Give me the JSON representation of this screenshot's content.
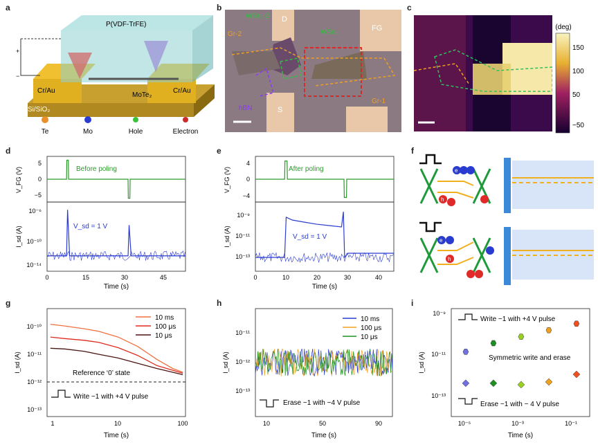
{
  "panel_letters": [
    "a",
    "b",
    "c",
    "d",
    "e",
    "f",
    "g",
    "h",
    "i"
  ],
  "a": {
    "polymer": "P(VDF-TrFE)",
    "electrode_left": "Cr/Au",
    "electrode_right": "Cr/Au",
    "channel": "MoTe₂",
    "substrate": "Si/SiO₂",
    "plus": "+",
    "minus": "−",
    "legend": [
      "Te",
      "Mo",
      "Hole",
      "Electron"
    ],
    "legend_colors": [
      "#e8902a",
      "#2a3bd0",
      "#3bc23b",
      "#cc2a2a"
    ]
  },
  "b": {
    "labels": [
      "WSe₂-2",
      "D",
      "WSe₂",
      "FG",
      "Gr-2",
      "hBN",
      "S",
      "Gr-1"
    ]
  },
  "c": {
    "colorbar_title": "(deg)",
    "colorbar_ticks": [
      "150",
      "100",
      "50",
      "−50"
    ]
  },
  "d": {
    "top_ylabel": "V_FG (V)",
    "top_note": "Before poling",
    "top_yticks": [
      "5",
      "0",
      "−5"
    ],
    "bot_ylabel": "I_sd (A)",
    "bot_note": "V_sd = 1 V",
    "bot_yticks": [
      "10⁻⁶",
      "10⁻¹⁰",
      "10⁻¹⁴"
    ],
    "xticks": [
      "0",
      "15",
      "30",
      "45"
    ],
    "xlabel": "Time (s)"
  },
  "e": {
    "top_ylabel": "V_FG (V)",
    "top_note": "After poling",
    "top_yticks": [
      "4",
      "0",
      "−4"
    ],
    "bot_ylabel": "I_sd (A)",
    "bot_note": "V_sd = 1 V",
    "bot_yticks": [
      "10⁻⁹",
      "10⁻¹¹",
      "10⁻¹³"
    ],
    "xticks": [
      "0",
      "10",
      "20",
      "30",
      "40"
    ],
    "xlabel": "Time (s)"
  },
  "f": {
    "charge_e": "e",
    "charge_h": "h"
  },
  "chart_data": [
    {
      "panel": "d-top",
      "type": "line",
      "xlabel": "Time (s)",
      "ylabel": "V_FG (V)",
      "xlim": [
        0,
        54
      ],
      "ylim": [
        -6,
        6
      ],
      "series": [
        {
          "name": "V_FG",
          "x": [
            0,
            7.6,
            7.7,
            8.3,
            8.4,
            31.6,
            31.7,
            32.3,
            32.4,
            54
          ],
          "y": [
            0,
            0,
            5,
            5,
            0,
            0,
            -5,
            -5,
            0,
            0
          ]
        }
      ],
      "annotations": [
        "Before poling"
      ]
    },
    {
      "panel": "d-bottom",
      "type": "line",
      "xlabel": "Time (s)",
      "ylabel": "I_sd (A)",
      "yscale": "log",
      "xlim": [
        0,
        54
      ],
      "ylim": [
        1e-14,
        1e-05
      ],
      "series": [
        {
          "name": "I_sd",
          "x": [
            0,
            7.6,
            8,
            8.8,
            31.6,
            32,
            32.8,
            54
          ],
          "y": [
            1e-12,
            1e-12,
            1e-06,
            1e-12,
            1e-12,
            1e-08,
            1e-12,
            1e-12
          ]
        }
      ],
      "annotations": [
        "V_sd = 1 V"
      ]
    },
    {
      "panel": "e-top",
      "type": "line",
      "xlabel": "Time (s)",
      "ylabel": "V_FG (V)",
      "xlim": [
        0,
        45
      ],
      "ylim": [
        -5,
        5
      ],
      "series": [
        {
          "name": "V_FG",
          "x": [
            0,
            9.5,
            9.6,
            10.3,
            10.4,
            28.8,
            28.9,
            29.6,
            29.7,
            45
          ],
          "y": [
            0,
            0,
            4,
            4,
            0,
            0,
            -4,
            -4,
            0,
            0
          ]
        }
      ],
      "annotations": [
        "After poling"
      ]
    },
    {
      "panel": "e-bottom",
      "type": "line",
      "xlabel": "Time (s)",
      "ylabel": "I_sd (A)",
      "yscale": "log",
      "xlim": [
        0,
        45
      ],
      "ylim": [
        1e-13,
        1e-08
      ],
      "series": [
        {
          "name": "I_sd",
          "x": [
            0,
            9.5,
            10,
            12,
            16,
            20,
            24,
            28,
            28.6,
            29,
            30,
            45
          ],
          "y": [
            1e-12,
            1e-12,
            8e-10,
            5e-10,
            3.5e-10,
            2.5e-10,
            2e-10,
            1.6e-10,
            2e-09,
            1e-12,
            2e-12,
            2e-12
          ]
        }
      ],
      "annotations": [
        "V_sd = 1 V"
      ]
    },
    {
      "panel": "g",
      "type": "line",
      "xlabel": "Time (s)",
      "ylabel": "I_sd (A)",
      "xscale": "log",
      "yscale": "log",
      "xlim": [
        0.8,
        110
      ],
      "ylim": [
        1e-13,
        4e-10
      ],
      "series": [
        {
          "name": "10 ms",
          "color": "#f07040",
          "x": [
            0.9,
            1.5,
            3,
            5,
            10,
            20,
            40,
            70,
            100
          ],
          "y": [
            1.2e-10,
            1.05e-10,
            8.5e-11,
            7e-11,
            4.5e-11,
            2.2e-11,
            8e-12,
            4e-12,
            3e-12
          ]
        },
        {
          "name": "100 μs",
          "color": "#e02a1e",
          "x": [
            0.9,
            1.5,
            3,
            5,
            10,
            20,
            40,
            70,
            100
          ],
          "y": [
            4.5e-11,
            4e-11,
            3.5e-11,
            3e-11,
            2e-11,
            1.1e-11,
            5e-12,
            3.5e-12,
            2.8e-12
          ]
        },
        {
          "name": "10 μs",
          "color": "#4a1410",
          "x": [
            0.9,
            1.5,
            3,
            5,
            10,
            20,
            40,
            70,
            100
          ],
          "y": [
            1.9e-11,
            1.8e-11,
            1.5e-11,
            1.2e-11,
            9e-12,
            6e-12,
            4e-12,
            3e-12,
            2.5e-12
          ]
        }
      ],
      "reference": {
        "y": 1e-12,
        "label": "Reference ‘0’ state"
      },
      "annotations": [
        "Write −1 with +4 V  pulse"
      ]
    },
    {
      "panel": "h",
      "type": "line",
      "xlabel": "Time (s)",
      "ylabel": "I_sd (A)",
      "yscale": "log",
      "xlim": [
        2,
        100
      ],
      "ylim": [
        1e-14,
        1e-10
      ],
      "series": [
        {
          "name": "10 ms",
          "color": "#2a3bd0",
          "x": [
            2,
            100
          ],
          "y": [
            1e-12,
            1e-12
          ]
        },
        {
          "name": "100 μs",
          "color": "#f0a020",
          "x": [
            2,
            100
          ],
          "y": [
            1e-12,
            1e-12
          ]
        },
        {
          "name": "10 μs",
          "color": "#1e9020",
          "x": [
            2,
            100
          ],
          "y": [
            1e-12,
            1e-12
          ]
        }
      ],
      "annotations": [
        "Erase −1 with −4 V  pulse"
      ]
    },
    {
      "panel": "i",
      "type": "scatter",
      "xlabel": "Time (s)",
      "ylabel": "I_sd (A)",
      "xscale": "log",
      "yscale": "log",
      "xlim": [
        3e-06,
        0.3
      ],
      "ylim": [
        2e-14,
        2e-09
      ],
      "series": [
        {
          "name": "Write",
          "x": [
            1e-05,
            0.0001,
            0.001,
            0.01,
            0.1
          ],
          "y": [
            2e-11,
            5e-11,
            1e-10,
            2e-10,
            4e-10
          ],
          "colors": [
            "#7070e0",
            "#1e9020",
            "#9ad020",
            "#f0a020",
            "#f05020"
          ]
        },
        {
          "name": "Erase",
          "x": [
            1e-05,
            0.0001,
            0.001,
            0.01,
            0.1
          ],
          "y": [
            7e-13,
            7e-13,
            6e-13,
            8e-13,
            1.8e-12
          ],
          "colors": [
            "#7070e0",
            "#1e9020",
            "#9ad020",
            "#f0a020",
            "#f05020"
          ]
        }
      ],
      "annotations": [
        "Write −1 with +4 V  pulse",
        "Symmetric write and erase",
        "Erase −1 with − 4 V  pulse"
      ]
    }
  ],
  "axis_text": {
    "g_xticks": [
      "1",
      "10",
      "100"
    ],
    "g_yticks": [
      "10⁻¹⁰",
      "10⁻¹¹",
      "10⁻¹²",
      "10⁻¹³"
    ],
    "h_xticks": [
      "10",
      "50",
      "90"
    ],
    "h_yticks": [
      "10⁻¹¹",
      "10⁻¹²",
      "10⁻¹³"
    ],
    "i_xticks": [
      "10⁻⁵",
      "10⁻³",
      "10⁻¹"
    ],
    "i_yticks": [
      "10⁻⁹",
      "10⁻¹¹",
      "10⁻¹³"
    ],
    "xlabel": "Time (s)",
    "ylabel": "I_sd (A)"
  }
}
